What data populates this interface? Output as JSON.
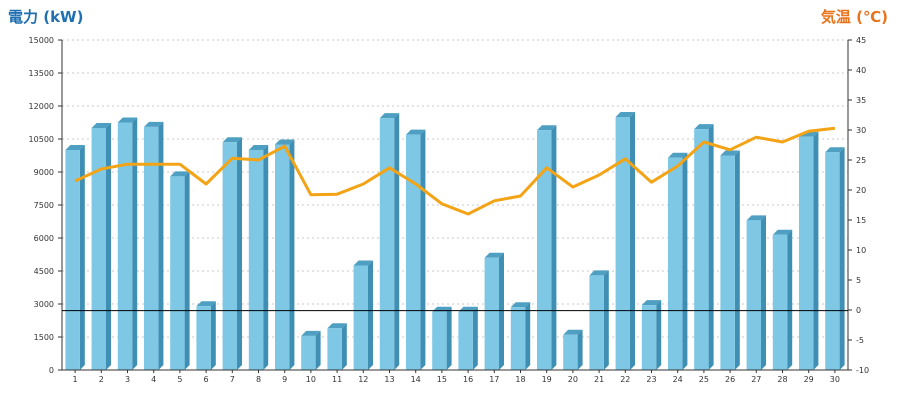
{
  "chart_data": {
    "type": "bar",
    "left_axis_title": "電力 (kW)",
    "right_axis_title": "気温 (℃)",
    "categories": [
      "1",
      "2",
      "3",
      "4",
      "5",
      "6",
      "7",
      "8",
      "9",
      "10",
      "11",
      "12",
      "13",
      "14",
      "15",
      "16",
      "17",
      "18",
      "19",
      "20",
      "21",
      "22",
      "23",
      "24",
      "25",
      "26",
      "27",
      "28",
      "29",
      "30"
    ],
    "y_left": {
      "min": 0,
      "max": 15000,
      "ticks": [
        0,
        1500,
        3000,
        4500,
        6000,
        7500,
        9000,
        10500,
        12000,
        13500,
        15000
      ]
    },
    "y_right": {
      "min": -10,
      "max": 45,
      "ticks": [
        -10,
        -5,
        0,
        5,
        10,
        15,
        20,
        25,
        30,
        35,
        40,
        45
      ]
    },
    "bars": {
      "axis": "left",
      "values": [
        10000,
        11000,
        11250,
        11050,
        8800,
        2900,
        10350,
        10000,
        10250,
        1550,
        1900,
        4750,
        11450,
        10700,
        2650,
        2650,
        5100,
        2850,
        10900,
        1600,
        4300,
        11500,
        2950,
        9650,
        10950,
        9750,
        6800,
        6150,
        10600,
        9900
      ],
      "color": "#7ec8e6"
    },
    "line": {
      "axis": "right",
      "values": [
        21.5,
        23.5,
        24.3,
        24.3,
        24.3,
        21.0,
        25.3,
        25.0,
        27.3,
        19.2,
        19.3,
        21.0,
        23.7,
        21.0,
        17.7,
        16.0,
        18.2,
        19.0,
        23.7,
        20.5,
        22.5,
        25.2,
        21.3,
        24.0,
        28.0,
        26.7,
        28.8,
        28.0,
        29.8,
        30.3
      ],
      "color": "#f3a316"
    },
    "reference_line": {
      "axis": "left",
      "value": 2700,
      "color": "#000000"
    },
    "grid": true
  }
}
